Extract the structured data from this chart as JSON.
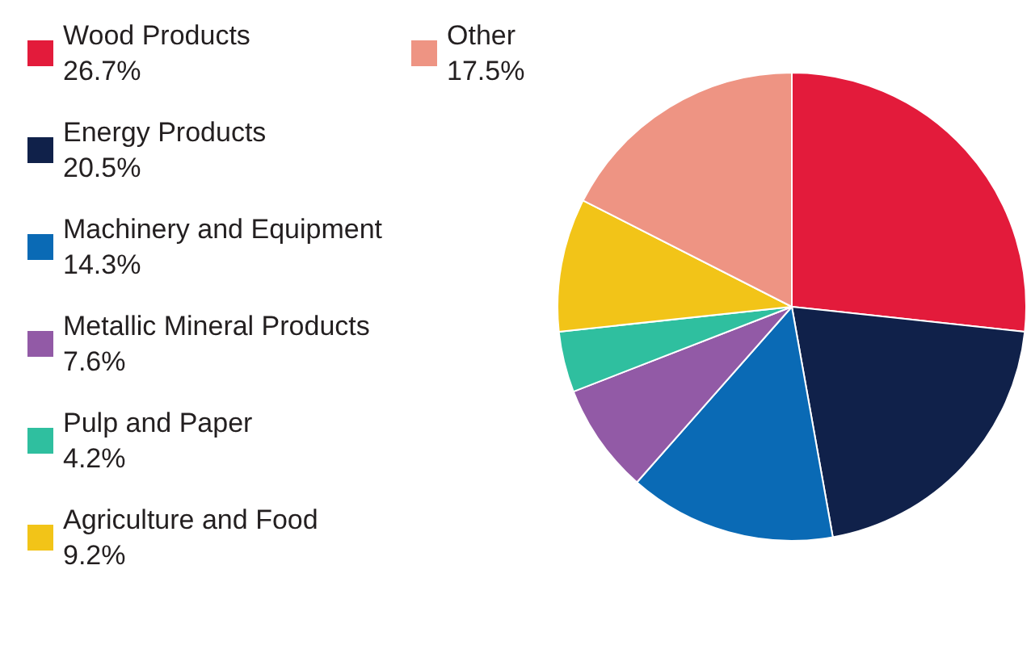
{
  "chart_data": {
    "type": "pie",
    "categories": [
      "Wood Products",
      "Energy Products",
      "Machinery and Equipment",
      "Metallic Mineral Products",
      "Pulp and Paper",
      "Agriculture and Food",
      "Other"
    ],
    "values": [
      26.7,
      20.5,
      14.3,
      7.6,
      4.2,
      9.2,
      17.5
    ],
    "value_labels": [
      "26.7%",
      "20.5%",
      "14.3%",
      "7.6%",
      "4.2%",
      "9.2%",
      "17.5%"
    ],
    "colors": [
      "#e31b3b",
      "#10214a",
      "#0a6ab5",
      "#925aa6",
      "#2fbf9f",
      "#f2c418",
      "#ee9483"
    ],
    "legend": "left"
  }
}
